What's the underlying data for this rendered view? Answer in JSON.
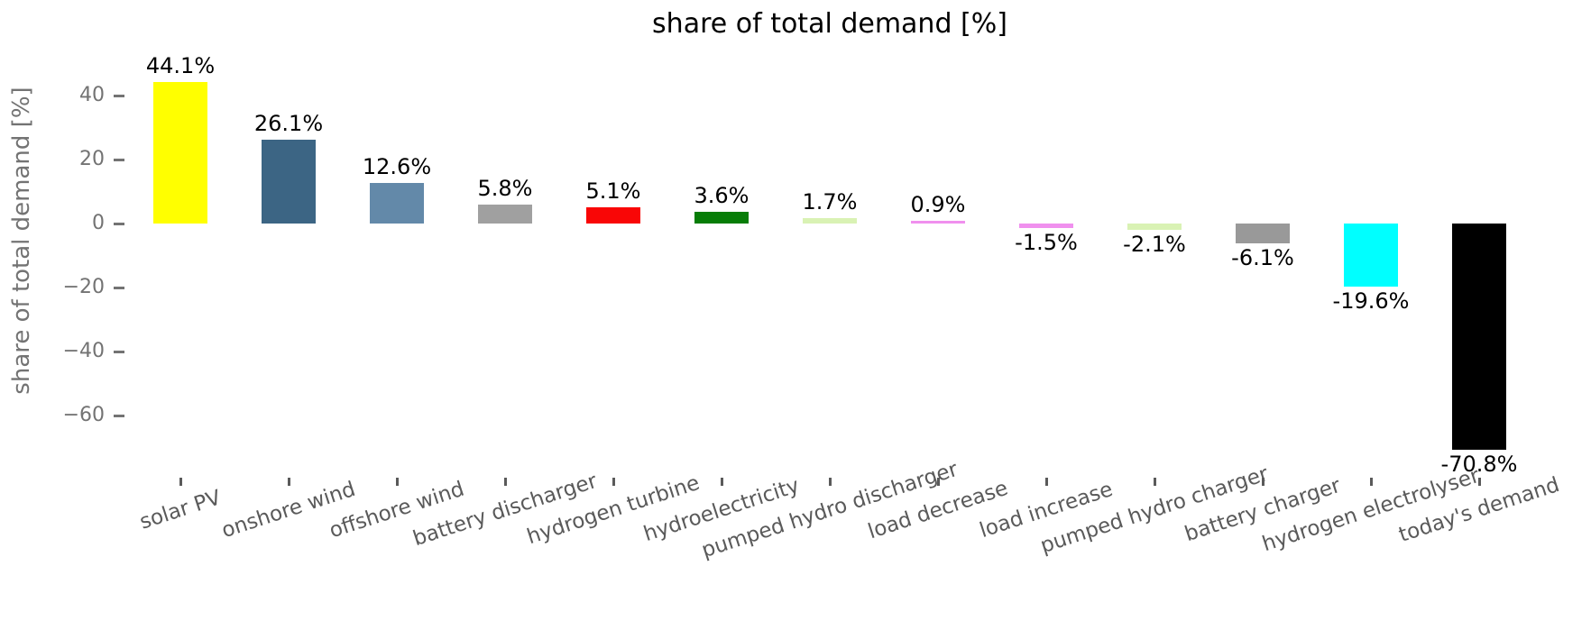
{
  "title": "share of total demand [%]",
  "chart_data": {
    "type": "bar",
    "title": "share of total demand [%]",
    "xlabel": "",
    "ylabel": "share of total demand [%]",
    "categories": [
      "solar PV",
      "onshore wind",
      "offshore wind",
      "battery discharger",
      "hydrogen turbine",
      "hydroelectricity",
      "pumped hydro discharger",
      "load decrease",
      "load increase",
      "pumped hydro charger",
      "battery charger",
      "hydrogen electrolyser",
      "today's demand"
    ],
    "values": [
      44.1,
      26.1,
      12.6,
      5.8,
      5.1,
      3.6,
      1.7,
      0.9,
      -1.5,
      -2.1,
      -6.1,
      -19.6,
      -70.8
    ],
    "bar_labels": [
      "44.1%",
      "26.1%",
      "12.6%",
      "5.8%",
      "5.1%",
      "3.6%",
      "1.7%",
      "0.9%",
      "-1.5%",
      "-2.1%",
      "-6.1%",
      "-19.6%",
      "-70.8%"
    ],
    "bar_colors": [
      "#ffff00",
      "#3c6584",
      "#6389a9",
      "#a0a0a0",
      "#f90606",
      "#077d07",
      "#d9f2b4",
      "#f090ee",
      "#f090ee",
      "#d9f2b4",
      "#999999",
      "#00ffff",
      "#000000"
    ],
    "yticks": {
      "labels": [
        "40",
        "20",
        "0",
        "−20",
        "−40",
        "−60"
      ],
      "values": [
        40,
        20,
        0,
        -20,
        -40,
        -60
      ]
    },
    "ylim": [
      -80.3,
      52.4
    ],
    "grid": false,
    "legend": "none",
    "bar_width_ratio": 0.5,
    "xtick_rotation_deg": 18,
    "style_colors": {
      "title_text": "#000000",
      "value_label_text": "#000000",
      "y_axis_text": "#737373",
      "x_axis_text": "#5a5a5a",
      "background": "#ffffff"
    }
  }
}
